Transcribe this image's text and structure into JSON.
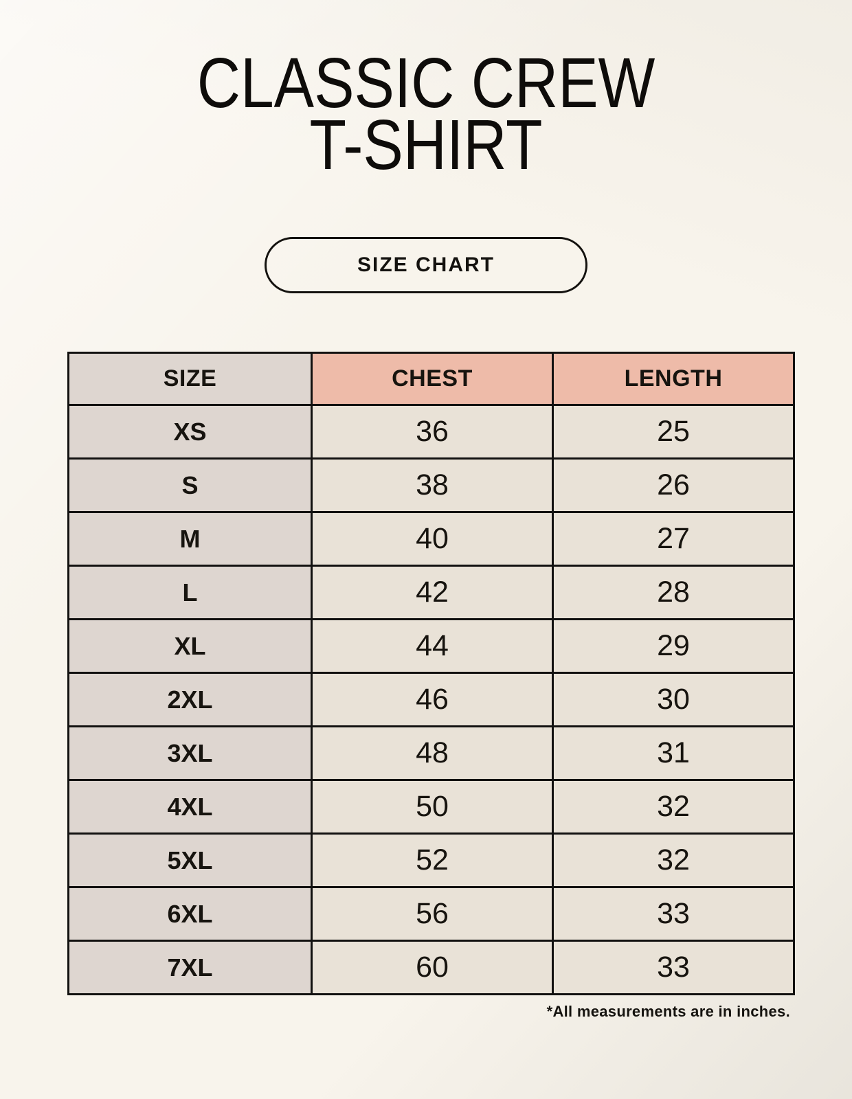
{
  "header": {
    "title_line1": "CLASSIC CREW",
    "title_line2": "T-SHIRT",
    "badge_label": "SIZE CHART"
  },
  "chart_data": {
    "type": "table",
    "title": "CLASSIC CREW T-SHIRT",
    "subtitle": "SIZE CHART",
    "columns": [
      "SIZE",
      "CHEST",
      "LENGTH"
    ],
    "rows": [
      [
        "XS",
        "36",
        "25"
      ],
      [
        "S",
        "38",
        "26"
      ],
      [
        "M",
        "40",
        "27"
      ],
      [
        "L",
        "42",
        "28"
      ],
      [
        "XL",
        "44",
        "29"
      ],
      [
        "2XL",
        "46",
        "30"
      ],
      [
        "3XL",
        "48",
        "31"
      ],
      [
        "4XL",
        "50",
        "32"
      ],
      [
        "5XL",
        "52",
        "32"
      ],
      [
        "6XL",
        "56",
        "33"
      ],
      [
        "7XL",
        "60",
        "33"
      ]
    ],
    "units": "inches"
  },
  "footer": {
    "note": "*All measurements are in inches."
  },
  "colors": {
    "background": "#f8f4ec",
    "size_column": "#ded6d0",
    "header_accent": "#eebba9",
    "cell_background": "#e9e2d7",
    "table_border": "#121110",
    "text": "#17140f"
  }
}
